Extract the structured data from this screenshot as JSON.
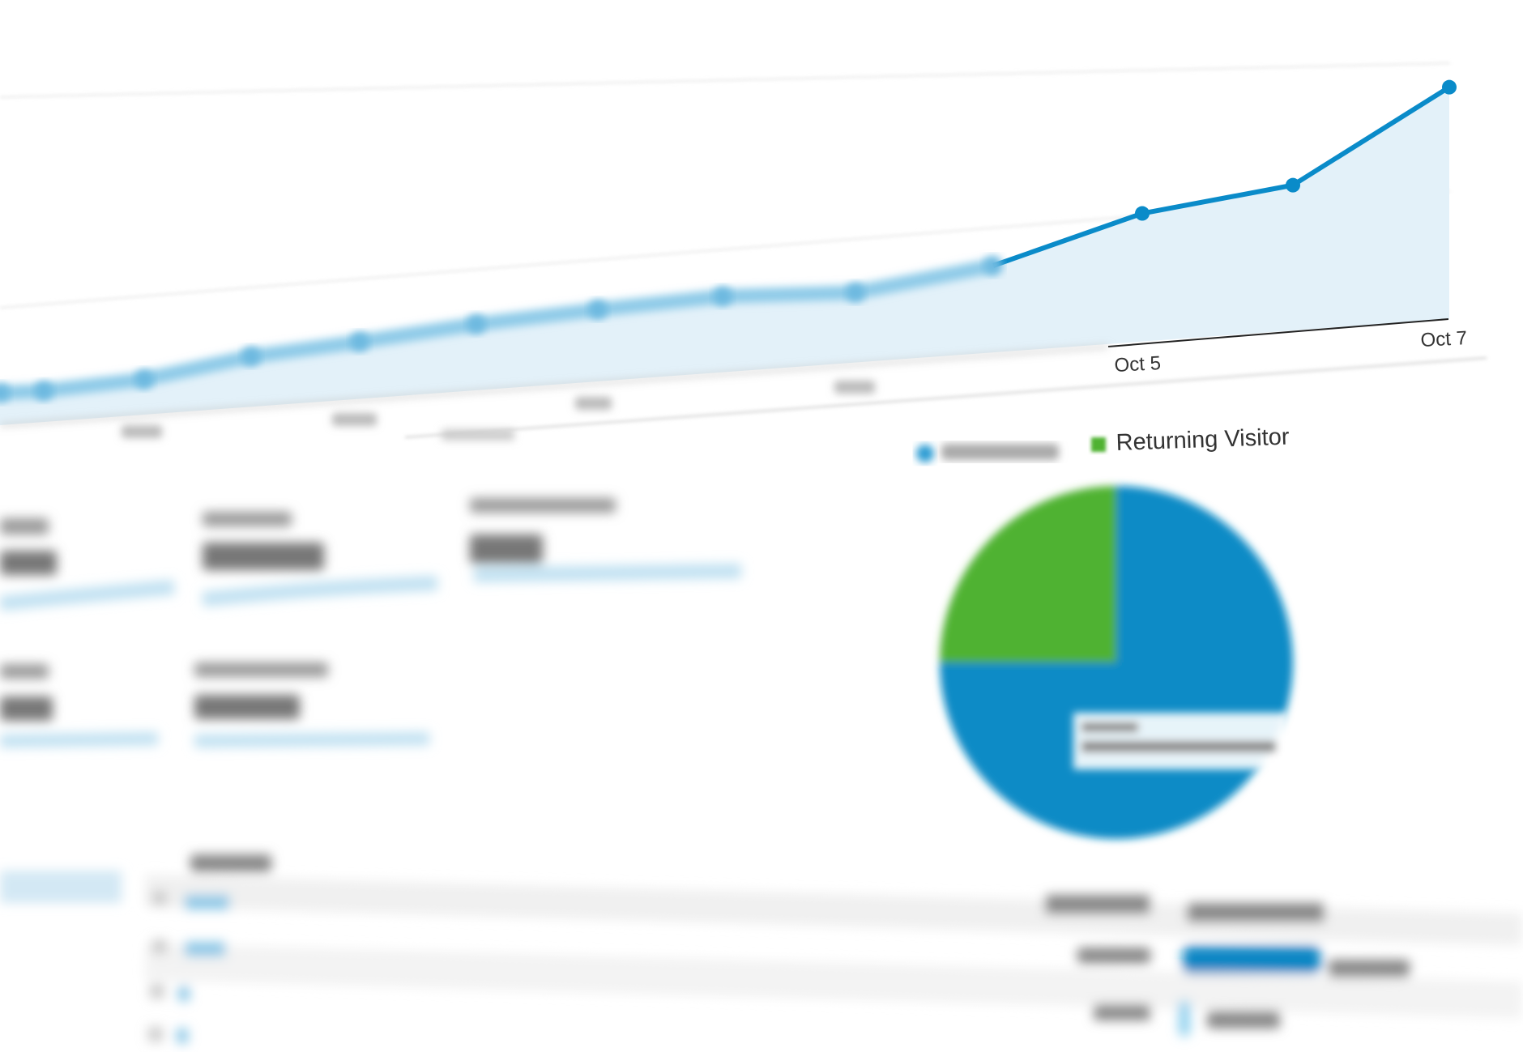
{
  "chart_data": [
    {
      "type": "area",
      "x_tick_labels": [
        "Oct 5",
        "Oct 7"
      ],
      "series": [
        {
          "values": [
            18,
            17,
            19,
            27,
            30,
            34,
            36,
            37,
            33,
            40,
            58,
            64,
            100
          ],
          "color": "#0a8bc9"
        }
      ],
      "grid": true,
      "fill_color": "#e3f1f9"
    },
    {
      "type": "pie",
      "legend": [
        {
          "label": "",
          "color": "#2b9bd3"
        },
        {
          "label": "Returning Visitor",
          "color": "#4fb233"
        }
      ],
      "values": [
        75,
        25
      ],
      "colors": [
        "#078bc6",
        "#4fb233"
      ],
      "legend_placement": "top"
    }
  ],
  "metrics": {
    "card_count_row1": 3,
    "card_count_row2": 2
  },
  "table": {
    "session_share_bars": [
      0.85,
      0.05
    ],
    "bar_color": "#0a86c4"
  }
}
